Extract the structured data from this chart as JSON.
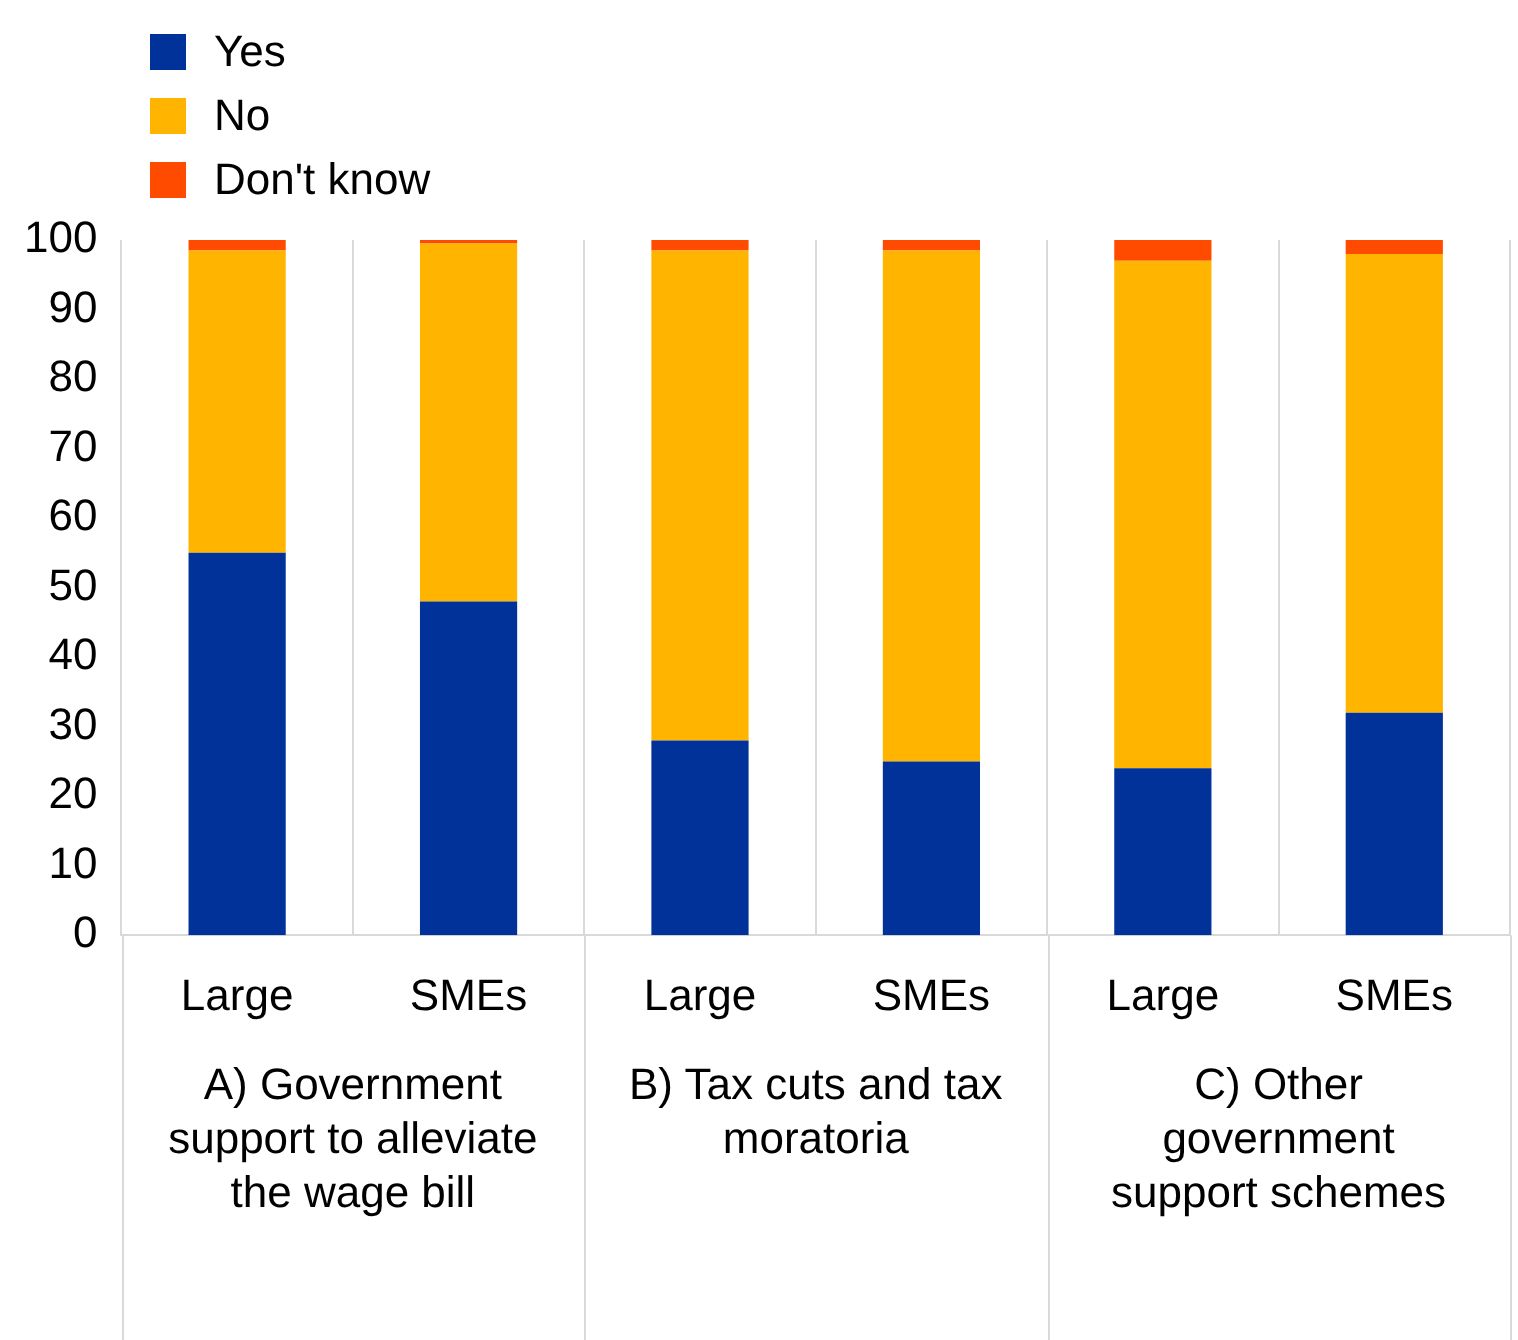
{
  "chart_data": {
    "type": "bar",
    "stacked": true,
    "categories": [
      "Large",
      "SMEs",
      "Large",
      "SMEs",
      "Large",
      "SMEs"
    ],
    "series": [
      {
        "name": "Yes",
        "color": "#003299",
        "values": [
          55,
          48,
          28,
          25,
          24,
          32
        ]
      },
      {
        "name": "No",
        "color": "#ffb400",
        "values": [
          43.5,
          51.5,
          70.5,
          73.5,
          73,
          66
        ]
      },
      {
        "name": "Don't know",
        "color": "#ff4b00",
        "values": [
          1.5,
          0.5,
          1.5,
          1.5,
          3,
          2
        ]
      }
    ],
    "ylim": [
      0,
      100
    ],
    "yticks": [
      0,
      10,
      20,
      30,
      40,
      50,
      60,
      70,
      80,
      90,
      100
    ],
    "grid": "x",
    "legend": "top left",
    "annotations": [
      "A) Government support to alleviate the wage bill",
      "B) Tax cuts and tax moratoria",
      "C) Other government support schemes"
    ]
  }
}
